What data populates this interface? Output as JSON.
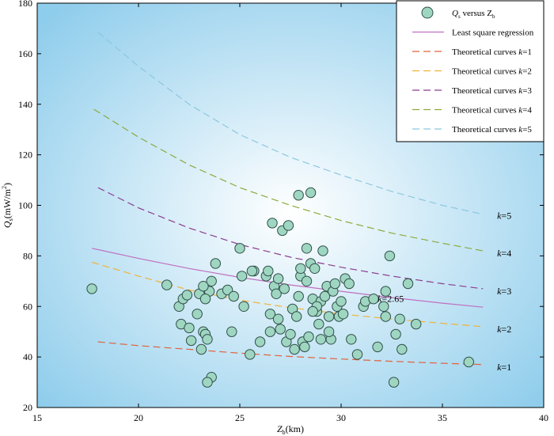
{
  "chart_data": {
    "type": "scatter",
    "xlabel": "Z",
    "xlabel_sub": "b",
    "xlabel_unit": "(km)",
    "ylabel": "Q",
    "ylabel_sub": "s",
    "ylabel_unit": "(mW/m",
    "ylabel_sup": "2",
    "ylabel_close": ")",
    "xlim": [
      15,
      40
    ],
    "ylim": [
      20,
      180
    ],
    "xticks": [
      15,
      20,
      25,
      30,
      35,
      40
    ],
    "yticks": [
      20,
      40,
      60,
      80,
      100,
      120,
      140,
      160,
      180
    ],
    "grid": false,
    "legend_position": "top-right",
    "background": "radial gradient, white center to light blue edges",
    "colors": {
      "scatter_fill": "#9fd6c2",
      "scatter_stroke": "#2f4f48",
      "regression": "#c06fc0",
      "k1": "#e0643c",
      "k2": "#f0b23a",
      "k3": "#8a3c8e",
      "k4": "#8caa3c",
      "k5": "#8dc8df",
      "bg_center": "#ffffff",
      "bg_edge": "#8fcdec"
    },
    "legend": [
      {
        "key": "scatter",
        "text": "Q",
        "sub": "s",
        "mid": " versus Z",
        "sub2": "b"
      },
      {
        "key": "regression",
        "text": "Least square regression"
      },
      {
        "key": "k1",
        "text": "Theoretical curves ",
        "k": "k",
        "val": "=1"
      },
      {
        "key": "k2",
        "text": "Theoretical curves ",
        "k": "k",
        "val": "=2"
      },
      {
        "key": "k3",
        "text": "Theoretical curves ",
        "k": "k",
        "val": "=3"
      },
      {
        "key": "k4",
        "text": "Theoretical curves ",
        "k": "k",
        "val": "=4"
      },
      {
        "key": "k5",
        "text": "Theoretical curves ",
        "k": "k",
        "val": "=5"
      }
    ],
    "curve_labels": [
      {
        "key": "k5",
        "k": "k",
        "val": "=5",
        "x": 37.7,
        "y": 96
      },
      {
        "key": "k4",
        "k": "k",
        "val": "=4",
        "x": 37.7,
        "y": 81
      },
      {
        "key": "k3",
        "k": "k",
        "val": "=3",
        "x": 37.7,
        "y": 66
      },
      {
        "key": "k2",
        "k": "k",
        "val": "=2",
        "x": 37.7,
        "y": 51
      },
      {
        "key": "k1",
        "k": "k",
        "val": "=1",
        "x": 37.7,
        "y": 36
      },
      {
        "key": "regression",
        "k": "k",
        "val": "=2.65",
        "x": 31.8,
        "y": 63
      }
    ],
    "series": [
      {
        "key": "regression",
        "style": "solid",
        "x": [
          17.7,
          20,
          22.5,
          25,
          27.5,
          30,
          32.5,
          35,
          37
        ],
        "y": [
          83,
          79,
          75,
          71.5,
          68.5,
          66,
          63.5,
          61.3,
          59.7
        ]
      },
      {
        "key": "k1",
        "style": "dashed",
        "x": [
          18.0,
          20,
          22.5,
          25,
          27.5,
          30,
          32.5,
          35,
          37
        ],
        "y": [
          46,
          44.5,
          43,
          41.5,
          40.2,
          39.2,
          38.3,
          37.5,
          37
        ]
      },
      {
        "key": "k2",
        "style": "dashed",
        "x": [
          17.7,
          20,
          22.5,
          25,
          27.5,
          30,
          32.5,
          35,
          37
        ],
        "y": [
          77.5,
          72,
          66.5,
          62.5,
          59.5,
          57,
          55,
          53.3,
          52
        ]
      },
      {
        "key": "k3",
        "style": "dashed",
        "x": [
          18.0,
          20,
          22.5,
          25,
          27.5,
          30,
          32.5,
          35,
          37
        ],
        "y": [
          107,
          99,
          91,
          84.5,
          79.5,
          75.5,
          72,
          69,
          67
        ]
      },
      {
        "key": "k4",
        "style": "dashed",
        "x": [
          17.8,
          20,
          22.5,
          25,
          27.5,
          30,
          32.5,
          35,
          37
        ],
        "y": [
          138,
          127,
          116,
          107,
          100,
          94,
          89,
          85,
          82
        ]
      },
      {
        "key": "k5",
        "style": "dashed",
        "x": [
          18.0,
          20,
          22.5,
          25,
          27.5,
          30,
          32.5,
          35,
          37
        ],
        "y": [
          168.5,
          155,
          140,
          128,
          119,
          112,
          105.5,
          100,
          96.5
        ]
      }
    ],
    "points": {
      "x": [
        17.7,
        21.4,
        22.0,
        22.2,
        22.4,
        22.1,
        22.5,
        22.6,
        22.9,
        23.0,
        23.1,
        23.2,
        23.3,
        23.4,
        23.5,
        23.6,
        23.6,
        23.4,
        23.3,
        23.2,
        23.8,
        24.1,
        24.4,
        24.6,
        24.7,
        25.0,
        25.1,
        25.2,
        25.5,
        25.7,
        26.0,
        26.3,
        26.4,
        26.5,
        26.6,
        26.7,
        26.8,
        26.9,
        27.1,
        27.2,
        27.3,
        27.5,
        27.6,
        27.8,
        27.9,
        28.0,
        28.1,
        28.2,
        28.3,
        28.4,
        28.5,
        28.6,
        28.7,
        28.8,
        28.9,
        29.0,
        29.1,
        29.2,
        29.3,
        29.4,
        29.5,
        29.6,
        29.7,
        29.8,
        29.9,
        30.0,
        30.2,
        30.4,
        30.5,
        30.8,
        31.1,
        31.2,
        31.6,
        31.8,
        32.1,
        32.2,
        32.4,
        32.6,
        32.7,
        32.9,
        33.0,
        33.3,
        33.7,
        36.3,
        28.0,
        28.5,
        26.5,
        27.0,
        25.6,
        26.9,
        27.7,
        28.8,
        29.4,
        30.1,
        28.3,
        27.4,
        32.2,
        29.0,
        28.6,
        27.9
      ],
      "y": [
        67,
        68.5,
        60,
        63,
        64.5,
        53,
        51.5,
        46.5,
        57,
        65,
        43,
        50,
        49,
        47,
        66,
        70,
        32,
        30,
        63,
        68,
        77,
        65,
        66.5,
        50,
        64,
        83,
        72,
        60,
        41,
        74,
        46,
        72,
        74,
        57,
        93,
        68,
        65,
        55,
        90,
        67,
        46,
        49,
        59,
        56,
        104,
        72,
        46,
        44,
        70,
        48,
        77,
        63,
        75,
        58,
        53,
        62,
        82,
        64,
        68,
        56,
        47,
        66,
        69,
        60,
        56,
        62,
        71,
        69,
        47,
        41,
        60,
        62,
        63,
        44,
        60,
        56,
        80,
        30,
        49,
        55,
        43,
        69,
        53,
        38,
        75,
        105,
        50,
        51,
        74,
        71,
        43,
        60,
        50,
        57,
        83,
        92,
        66,
        47,
        58,
        64
      ]
    }
  }
}
